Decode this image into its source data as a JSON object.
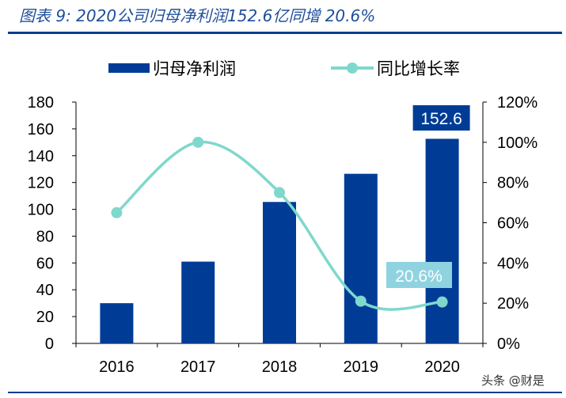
{
  "header": {
    "title": "图表 9:  2020公司归母净利润152.6亿同增 20.6%"
  },
  "watermark": "头条 @财是",
  "chart_data": {
    "type": "bar+line",
    "categories": [
      "2016",
      "2017",
      "2018",
      "2019",
      "2020"
    ],
    "series": [
      {
        "name": "归母净利润",
        "type": "bar",
        "axis": "left",
        "color": "#003c96",
        "values": [
          30,
          61,
          105.5,
          126.5,
          152.6
        ]
      },
      {
        "name": "同比增长率",
        "type": "line",
        "axis": "right",
        "color": "#7fd8cc",
        "values": [
          65,
          100,
          75,
          21,
          20.6
        ]
      }
    ],
    "left_axis": {
      "ylim": [
        0,
        180
      ],
      "ticks": [
        "0",
        "20",
        "40",
        "60",
        "80",
        "100",
        "120",
        "140",
        "160",
        "180"
      ]
    },
    "right_axis": {
      "ylim": [
        0,
        120
      ],
      "ticks": [
        "0%",
        "20%",
        "40%",
        "60%",
        "80%",
        "100%",
        "120%"
      ]
    },
    "annotations": [
      {
        "text": "152.6",
        "category": "2020",
        "series": "归母净利润",
        "color": "#003c96"
      },
      {
        "text": "20.6%",
        "category": "2020",
        "series": "同比增长率",
        "color": "#8fd3e0"
      }
    ],
    "legend": "top",
    "grid": false
  }
}
